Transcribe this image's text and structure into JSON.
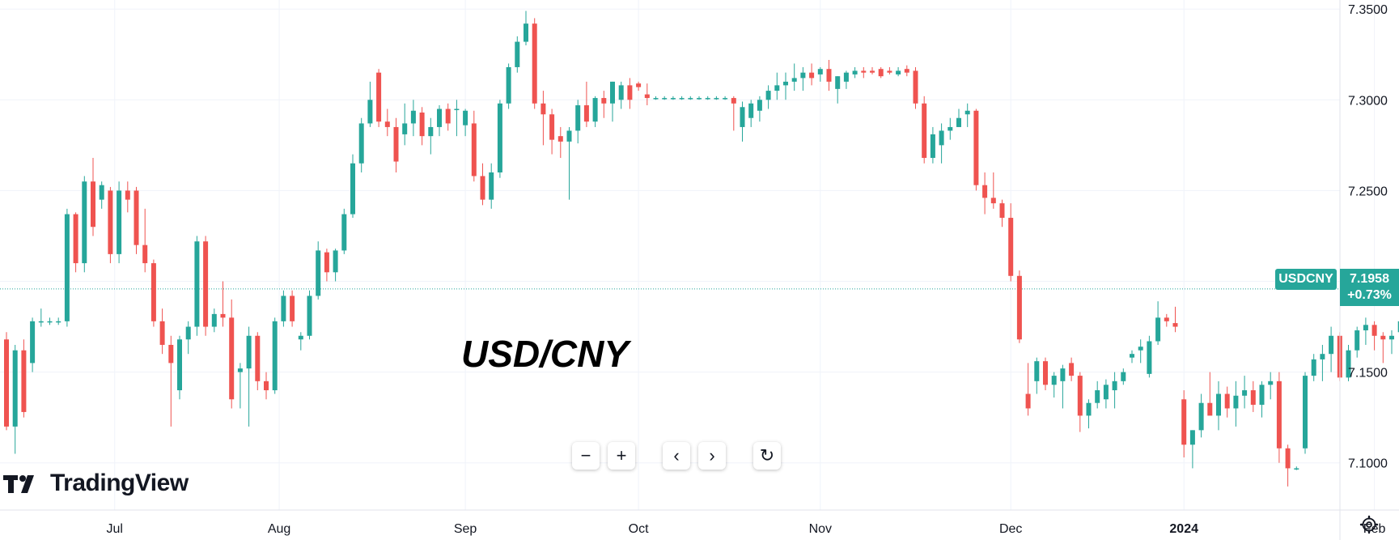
{
  "title": "USD/CNY",
  "brand": "TradingView",
  "symbol": "USDCNY",
  "last_price": "7.1958",
  "change_pct": "+0.73%",
  "controls": [
    {
      "name": "zoom-out-button",
      "glyph": "−"
    },
    {
      "name": "zoom-in-button",
      "glyph": "+"
    },
    {
      "name": "scroll-left-button",
      "glyph": "‹"
    },
    {
      "name": "scroll-right-button",
      "glyph": "›"
    },
    {
      "name": "reset-button",
      "glyph": "↻"
    }
  ],
  "colors": {
    "up": "#26a69a",
    "down": "#ef5350",
    "grid": "#f0f3fa",
    "axis": "#e0e3eb"
  },
  "chart_data": {
    "type": "candlestick",
    "ylim": [
      7.074,
      7.355
    ],
    "y_ticks": [
      "7.1000",
      "7.1500",
      "7.2000",
      "7.2500",
      "7.3000",
      "7.3500"
    ],
    "x_ticks": [
      {
        "label": "Jul",
        "index": 12.5
      },
      {
        "label": "Aug",
        "index": 31.5
      },
      {
        "label": "Sep",
        "index": 53
      },
      {
        "label": "Oct",
        "index": 73
      },
      {
        "label": "Nov",
        "index": 94
      },
      {
        "label": "Dec",
        "index": 116
      },
      {
        "label": "2024",
        "index": 136,
        "bold": true
      },
      {
        "label": "Feb",
        "index": 158
      }
    ],
    "candles": [
      [
        7.168,
        7.172,
        7.118,
        7.12
      ],
      [
        7.12,
        7.165,
        7.105,
        7.162
      ],
      [
        7.162,
        7.168,
        7.125,
        7.128
      ],
      [
        7.155,
        7.18,
        7.15,
        7.178
      ],
      [
        7.178,
        7.185,
        7.175,
        7.178
      ],
      [
        7.178,
        7.18,
        7.176,
        7.178
      ],
      [
        7.178,
        7.18,
        7.176,
        7.178
      ],
      [
        7.178,
        7.24,
        7.175,
        7.237
      ],
      [
        7.237,
        7.238,
        7.205,
        7.21
      ],
      [
        7.21,
        7.258,
        7.205,
        7.255
      ],
      [
        7.255,
        7.268,
        7.225,
        7.23
      ],
      [
        7.245,
        7.255,
        7.24,
        7.253
      ],
      [
        7.25,
        7.252,
        7.21,
        7.215
      ],
      [
        7.215,
        7.255,
        7.21,
        7.25
      ],
      [
        7.25,
        7.255,
        7.238,
        7.245
      ],
      [
        7.25,
        7.252,
        7.215,
        7.22
      ],
      [
        7.22,
        7.24,
        7.205,
        7.21
      ],
      [
        7.21,
        7.212,
        7.175,
        7.178
      ],
      [
        7.178,
        7.185,
        7.16,
        7.165
      ],
      [
        7.165,
        7.17,
        7.12,
        7.155
      ],
      [
        7.14,
        7.17,
        7.135,
        7.168
      ],
      [
        7.168,
        7.178,
        7.16,
        7.175
      ],
      [
        7.175,
        7.225,
        7.17,
        7.222
      ],
      [
        7.222,
        7.225,
        7.17,
        7.175
      ],
      [
        7.175,
        7.185,
        7.172,
        7.182
      ],
      [
        7.182,
        7.2,
        7.175,
        7.18
      ],
      [
        7.18,
        7.19,
        7.13,
        7.135
      ],
      [
        7.15,
        7.155,
        7.13,
        7.152
      ],
      [
        7.152,
        7.175,
        7.12,
        7.17
      ],
      [
        7.17,
        7.172,
        7.14,
        7.145
      ],
      [
        7.145,
        7.15,
        7.135,
        7.14
      ],
      [
        7.14,
        7.18,
        7.138,
        7.178
      ],
      [
        7.178,
        7.195,
        7.175,
        7.192
      ],
      [
        7.192,
        7.195,
        7.175,
        7.178
      ],
      [
        7.168,
        7.172,
        7.162,
        7.17
      ],
      [
        7.17,
        7.195,
        7.168,
        7.192
      ],
      [
        7.192,
        7.222,
        7.19,
        7.217
      ],
      [
        7.216,
        7.218,
        7.2,
        7.205
      ],
      [
        7.205,
        7.218,
        7.2,
        7.217
      ],
      [
        7.217,
        7.24,
        7.215,
        7.237
      ],
      [
        7.237,
        7.27,
        7.235,
        7.265
      ],
      [
        7.265,
        7.29,
        7.26,
        7.287
      ],
      [
        7.287,
        7.31,
        7.285,
        7.3
      ],
      [
        7.315,
        7.317,
        7.285,
        7.288
      ],
      [
        7.288,
        7.295,
        7.28,
        7.285
      ],
      [
        7.285,
        7.29,
        7.26,
        7.266
      ],
      [
        7.281,
        7.298,
        7.275,
        7.287
      ],
      [
        7.287,
        7.3,
        7.28,
        7.294
      ],
      [
        7.293,
        7.296,
        7.275,
        7.28
      ],
      [
        7.28,
        7.29,
        7.27,
        7.285
      ],
      [
        7.285,
        7.297,
        7.28,
        7.295
      ],
      [
        7.295,
        7.298,
        7.283,
        7.287
      ],
      [
        7.295,
        7.3,
        7.28,
        7.295
      ],
      [
        7.286,
        7.295,
        7.28,
        7.294
      ],
      [
        7.287,
        7.294,
        7.255,
        7.258
      ],
      [
        7.258,
        7.265,
        7.242,
        7.245
      ],
      [
        7.245,
        7.265,
        7.24,
        7.26
      ],
      [
        7.26,
        7.3,
        7.257,
        7.298
      ],
      [
        7.298,
        7.32,
        7.295,
        7.318
      ],
      [
        7.318,
        7.335,
        7.315,
        7.332
      ],
      [
        7.332,
        7.349,
        7.33,
        7.342
      ],
      [
        7.342,
        7.345,
        7.295,
        7.298
      ],
      [
        7.298,
        7.305,
        7.275,
        7.292
      ],
      [
        7.292,
        7.295,
        7.27,
        7.278
      ],
      [
        7.28,
        7.285,
        7.268,
        7.277
      ],
      [
        7.277,
        7.285,
        7.245,
        7.283
      ],
      [
        7.283,
        7.3,
        7.276,
        7.297
      ],
      [
        7.297,
        7.31,
        7.285,
        7.288
      ],
      [
        7.288,
        7.302,
        7.285,
        7.301
      ],
      [
        7.301,
        7.305,
        7.29,
        7.298
      ],
      [
        7.298,
        7.31,
        7.288,
        7.31
      ],
      [
        7.3,
        7.31,
        7.295,
        7.308
      ],
      [
        7.308,
        7.312,
        7.295,
        7.3
      ],
      [
        7.309,
        7.31,
        7.305,
        7.307
      ],
      [
        7.303,
        7.309,
        7.297,
        7.301
      ],
      [
        7.301,
        7.302,
        7.3,
        7.301
      ],
      [
        7.301,
        7.302,
        7.3,
        7.301
      ],
      [
        7.301,
        7.302,
        7.3,
        7.301
      ],
      [
        7.301,
        7.302,
        7.3,
        7.301
      ],
      [
        7.301,
        7.302,
        7.3,
        7.301
      ],
      [
        7.301,
        7.302,
        7.3,
        7.301
      ],
      [
        7.301,
        7.302,
        7.3,
        7.301
      ],
      [
        7.301,
        7.302,
        7.3,
        7.301
      ],
      [
        7.301,
        7.302,
        7.3,
        7.301
      ],
      [
        7.301,
        7.302,
        7.283,
        7.298
      ],
      [
        7.285,
        7.299,
        7.277,
        7.296
      ],
      [
        7.29,
        7.3,
        7.285,
        7.298
      ],
      [
        7.294,
        7.302,
        7.288,
        7.3
      ],
      [
        7.3,
        7.308,
        7.295,
        7.305
      ],
      [
        7.305,
        7.315,
        7.3,
        7.308
      ],
      [
        7.308,
        7.315,
        7.3,
        7.31
      ],
      [
        7.31,
        7.32,
        7.305,
        7.312
      ],
      [
        7.312,
        7.318,
        7.305,
        7.315
      ],
      [
        7.315,
        7.32,
        7.308,
        7.312
      ],
      [
        7.314,
        7.318,
        7.31,
        7.317
      ],
      [
        7.317,
        7.322,
        7.305,
        7.31
      ],
      [
        7.306,
        7.313,
        7.298,
        7.313
      ],
      [
        7.31,
        7.316,
        7.306,
        7.315
      ],
      [
        7.314,
        7.318,
        7.312,
        7.316
      ],
      [
        7.316,
        7.318,
        7.312,
        7.315
      ],
      [
        7.316,
        7.318,
        7.314,
        7.315
      ],
      [
        7.317,
        7.318,
        7.312,
        7.313
      ],
      [
        7.316,
        7.318,
        7.314,
        7.315
      ],
      [
        7.314,
        7.318,
        7.313,
        7.316
      ],
      [
        7.317,
        7.319,
        7.313,
        7.315
      ],
      [
        7.316,
        7.318,
        7.295,
        7.298
      ],
      [
        7.298,
        7.302,
        7.265,
        7.268
      ],
      [
        7.268,
        7.285,
        7.265,
        7.281
      ],
      [
        7.275,
        7.287,
        7.265,
        7.283
      ],
      [
        7.283,
        7.29,
        7.278,
        7.285
      ],
      [
        7.285,
        7.295,
        7.285,
        7.29
      ],
      [
        7.292,
        7.298,
        7.285,
        7.294
      ],
      [
        7.294,
        7.295,
        7.25,
        7.253
      ],
      [
        7.253,
        7.26,
        7.237,
        7.246
      ],
      [
        7.246,
        7.26,
        7.24,
        7.243
      ],
      [
        7.243,
        7.245,
        7.23,
        7.235
      ],
      [
        7.235,
        7.243,
        7.2,
        7.203
      ],
      [
        7.203,
        7.206,
        7.166,
        7.168
      ],
      [
        7.138,
        7.155,
        7.126,
        7.13
      ],
      [
        7.145,
        7.158,
        7.138,
        7.156
      ],
      [
        7.156,
        7.158,
        7.14,
        7.143
      ],
      [
        7.143,
        7.15,
        7.136,
        7.148
      ],
      [
        7.145,
        7.154,
        7.13,
        7.152
      ],
      [
        7.155,
        7.158,
        7.145,
        7.148
      ],
      [
        7.148,
        7.15,
        7.117,
        7.126
      ],
      [
        7.126,
        7.135,
        7.119,
        7.133
      ],
      [
        7.133,
        7.145,
        7.13,
        7.14
      ],
      [
        7.135,
        7.146,
        7.13,
        7.143
      ],
      [
        7.14,
        7.15,
        7.13,
        7.145
      ],
      [
        7.145,
        7.152,
        7.143,
        7.15
      ],
      [
        7.158,
        7.162,
        7.155,
        7.16
      ],
      [
        7.162,
        7.168,
        7.155,
        7.164
      ],
      [
        7.149,
        7.17,
        7.147,
        7.167
      ],
      [
        7.167,
        7.189,
        7.165,
        7.18
      ],
      [
        7.18,
        7.182,
        7.175,
        7.178
      ],
      [
        7.177,
        7.186,
        7.172,
        7.175
      ],
      [
        7.135,
        7.14,
        7.103,
        7.11
      ],
      [
        7.11,
        7.118,
        7.097,
        7.118
      ],
      [
        7.118,
        7.138,
        7.114,
        7.133
      ],
      [
        7.133,
        7.15,
        7.128,
        7.126
      ],
      [
        7.126,
        7.145,
        7.118,
        7.138
      ],
      [
        7.138,
        7.142,
        7.125,
        7.13
      ],
      [
        7.13,
        7.145,
        7.12,
        7.137
      ],
      [
        7.137,
        7.148,
        7.13,
        7.14
      ],
      [
        7.14,
        7.145,
        7.128,
        7.132
      ],
      [
        7.132,
        7.145,
        7.125,
        7.143
      ],
      [
        7.143,
        7.15,
        7.135,
        7.145
      ],
      [
        7.145,
        7.15,
        7.1,
        7.108
      ],
      [
        7.108,
        7.11,
        7.087,
        7.097
      ],
      [
        7.097,
        7.098,
        7.096,
        7.097
      ],
      [
        7.108,
        7.15,
        7.105,
        7.148
      ],
      [
        7.148,
        7.16,
        7.145,
        7.157
      ],
      [
        7.157,
        7.165,
        7.145,
        7.16
      ],
      [
        7.16,
        7.175,
        7.15,
        7.17
      ],
      [
        7.17,
        7.172,
        7.145,
        7.147
      ],
      [
        7.147,
        7.165,
        7.145,
        7.162
      ],
      [
        7.162,
        7.175,
        7.158,
        7.173
      ],
      [
        7.173,
        7.18,
        7.165,
        7.176
      ],
      [
        7.176,
        7.178,
        7.162,
        7.17
      ],
      [
        7.17,
        7.172,
        7.155,
        7.168
      ],
      [
        7.168,
        7.173,
        7.16,
        7.17
      ],
      [
        7.172,
        7.18,
        7.168,
        7.178
      ],
      [
        7.178,
        7.195,
        7.175,
        7.192
      ],
      [
        7.192,
        7.198,
        7.188,
        7.197
      ],
      [
        7.196,
        7.198,
        7.192,
        7.196
      ],
      [
        7.196,
        7.198,
        7.19,
        7.193
      ],
      [
        7.192,
        7.197,
        7.19,
        7.196
      ]
    ]
  }
}
